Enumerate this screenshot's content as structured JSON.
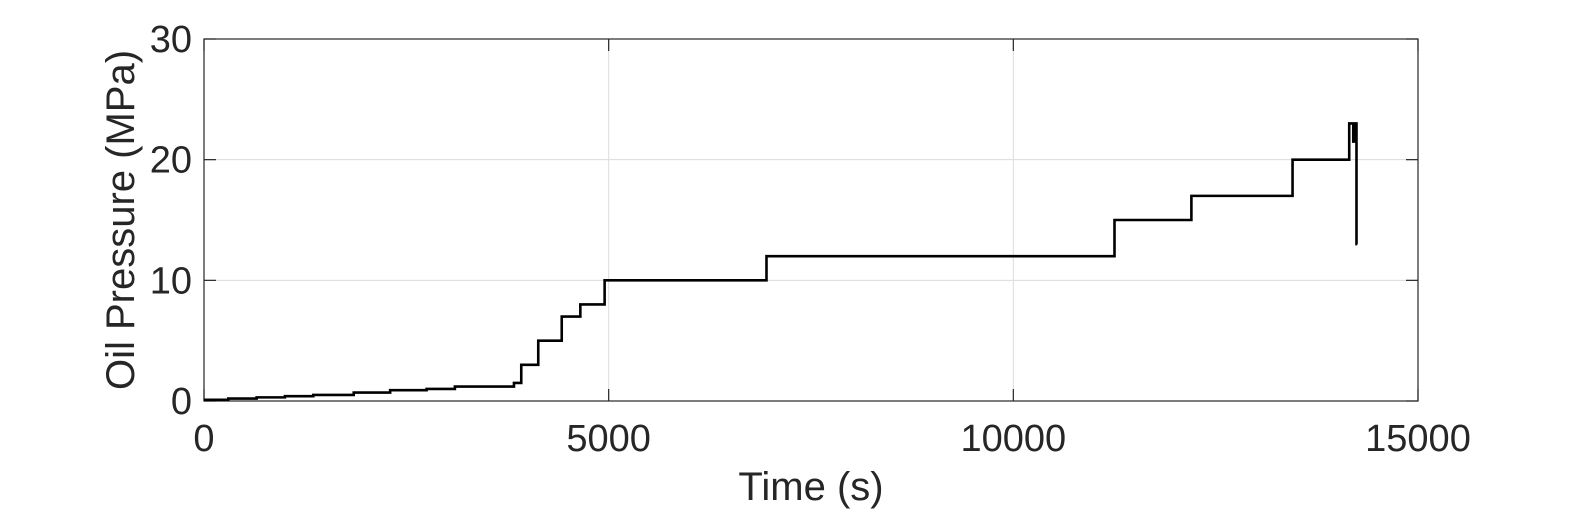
{
  "chart_data": {
    "type": "line",
    "xlabel": "Time (s)",
    "ylabel": "Oil Pressure (MPa)",
    "xlim": [
      0,
      15000
    ],
    "ylim": [
      0,
      30
    ],
    "xticks": [
      0,
      5000,
      10000,
      15000
    ],
    "yticks": [
      0,
      10,
      20,
      30
    ],
    "grid": true,
    "legend": "none",
    "line_color": "#000000",
    "series": [
      {
        "x": [
          0,
          300,
          300,
          650,
          650,
          1000,
          1000,
          1350,
          1350,
          1850,
          1850,
          2300,
          2300,
          2750,
          2750,
          3100,
          3100,
          3830,
          3830,
          3920,
          3920,
          4130,
          4130,
          4420,
          4420,
          4650,
          4650,
          4950,
          4950,
          6950,
          6950,
          11250,
          11250,
          12200,
          12200,
          13450,
          13450,
          14150,
          14150,
          14200,
          14200,
          14210,
          14210,
          14240,
          14240,
          14250
        ],
        "y": [
          0.1,
          0.1,
          0.2,
          0.2,
          0.3,
          0.3,
          0.4,
          0.4,
          0.5,
          0.5,
          0.7,
          0.7,
          0.9,
          0.9,
          1.0,
          1.0,
          1.2,
          1.2,
          1.5,
          1.5,
          3.0,
          3.0,
          5.0,
          5.0,
          7.0,
          7.0,
          8.0,
          8.0,
          10.0,
          10.0,
          12.0,
          12.0,
          15.0,
          15.0,
          17.0,
          17.0,
          20.0,
          20.0,
          23.0,
          23.0,
          21.5,
          21.5,
          23.0,
          23.0,
          13.0,
          13.0
        ]
      }
    ]
  }
}
